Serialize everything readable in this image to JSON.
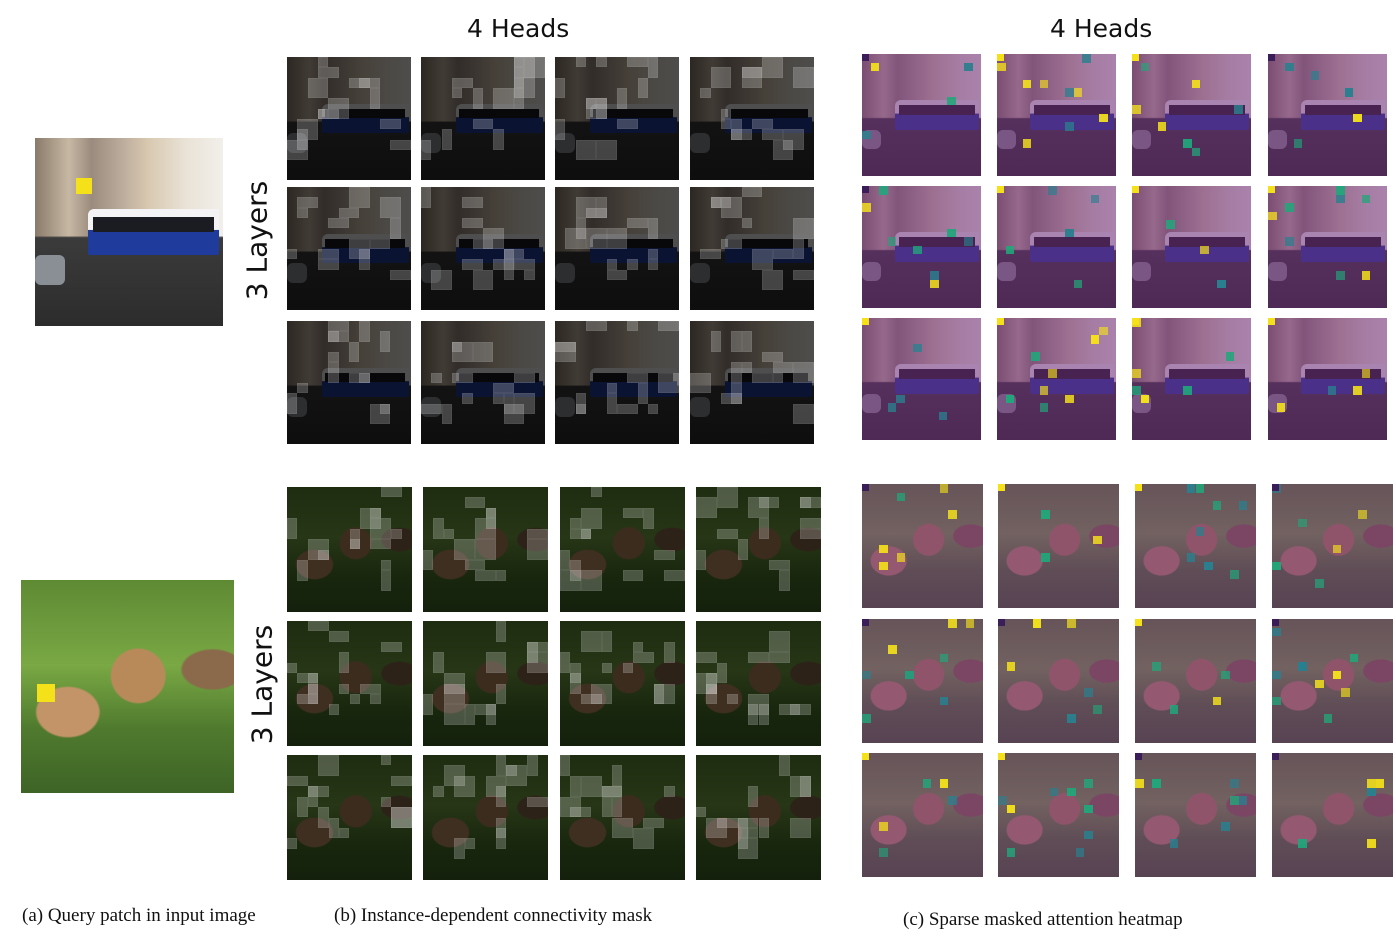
{
  "column_titles": {
    "mask_heads": "4 Heads",
    "heatmap_heads": "4 Heads"
  },
  "row_titles": {
    "tram_layers": "3 Layers",
    "bear_layers": "3 Layers"
  },
  "captions": {
    "a": "(a) Query patch in input image",
    "b": "(b) Instance-dependent connectivity mask",
    "c": "(c) Sparse masked attention heatmap"
  },
  "colors": {
    "query_patch": "#f4e11a",
    "heat_low": "#2a7f8e",
    "heat_mid": "#21a67a",
    "heat_high": "#f4e11a",
    "heat_dark": "#3b1d5a"
  }
}
